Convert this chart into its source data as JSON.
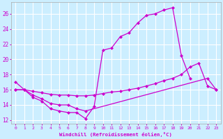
{
  "background_color": "#cceeff",
  "grid_color": "#ffffff",
  "line_color": "#cc00cc",
  "xlabel": "Windchill (Refroidissement éolien,°C)",
  "xlim": [
    -0.5,
    23.5
  ],
  "ylim": [
    11.5,
    27.5
  ],
  "yticks": [
    12,
    14,
    16,
    18,
    20,
    22,
    24,
    26
  ],
  "xticks": [
    0,
    1,
    2,
    3,
    4,
    5,
    6,
    7,
    8,
    9,
    10,
    11,
    12,
    13,
    14,
    15,
    16,
    17,
    18,
    19,
    20,
    21,
    22,
    23
  ],
  "series": [
    {
      "x": [
        0,
        1,
        2,
        3,
        4,
        5,
        6,
        7,
        8,
        9,
        10,
        11,
        12,
        13,
        14,
        15,
        16,
        17,
        18,
        19,
        20
      ],
      "y": [
        17,
        16,
        15.0,
        14.5,
        13.5,
        13.2,
        13.0,
        13.0,
        12.2,
        13.8,
        21.2,
        21.5,
        23.0,
        23.5,
        24.8,
        25.8,
        26.0,
        26.5,
        26.8,
        20.5,
        17.5
      ]
    },
    {
      "x": [
        0,
        1,
        2,
        3,
        4,
        5,
        6,
        7,
        8,
        22,
        23
      ],
      "y": [
        16,
        16,
        15.3,
        14.8,
        14.2,
        14.0,
        14.0,
        13.5,
        13.2,
        17.5,
        16.0
      ]
    },
    {
      "x": [
        0,
        1,
        2,
        3,
        4,
        5,
        6,
        7,
        8,
        9,
        10,
        11,
        12,
        13,
        14,
        15,
        16,
        17,
        18,
        19,
        20,
        21,
        22,
        23
      ],
      "y": [
        16.0,
        16.0,
        15.8,
        15.6,
        15.4,
        15.3,
        15.3,
        15.2,
        15.2,
        15.3,
        15.5,
        15.7,
        15.8,
        16.0,
        16.2,
        16.5,
        16.8,
        17.2,
        17.5,
        18.0,
        19.0,
        19.5,
        16.5,
        16.0
      ]
    }
  ]
}
